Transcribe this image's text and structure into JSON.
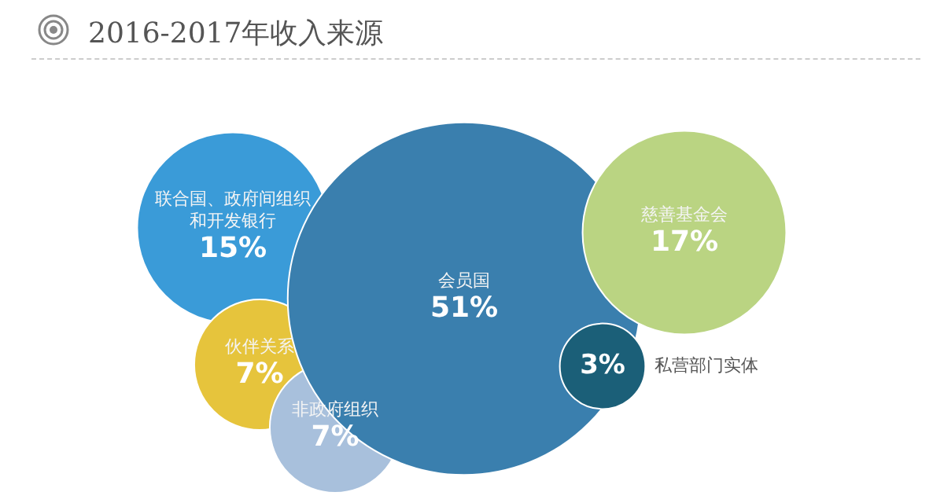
{
  "chart_data": {
    "type": "other",
    "title": "2016-2017年收入来源",
    "categories": [
      "联合国、政府间组织和开发银行",
      "伙伴关系",
      "非政府组织",
      "会员国",
      "私营部门实体",
      "慈善基金会"
    ],
    "values": [
      15,
      7,
      7,
      51,
      3,
      17
    ],
    "value_labels": [
      "15%",
      "7%",
      "7%",
      "51%",
      "3%",
      "17%"
    ],
    "colors": [
      "#3a9bd8",
      "#e6c43c",
      "#a8c0dc",
      "#3a7fae",
      "#1b5f78",
      "#bad482"
    ]
  }
}
